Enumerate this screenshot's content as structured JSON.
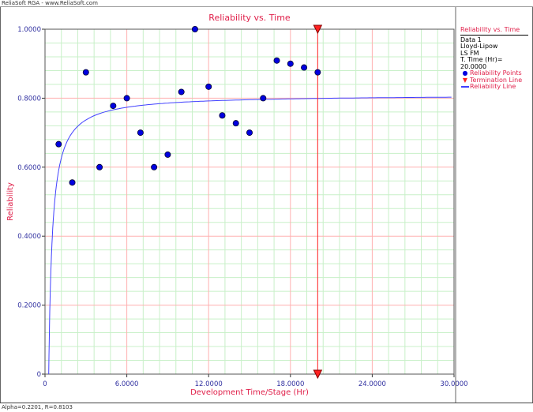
{
  "window": {
    "title": "ReliaSoft RGA - www.ReliaSoft.com"
  },
  "status_bar": {
    "text": "Alpha=0.2201, R=0.8103"
  },
  "legend": {
    "title": "Reliability vs. Time",
    "lines": [
      "Data 1",
      "Lloyd-Lipow",
      "LS FM",
      "T. Time (Hr)= 20.0000"
    ],
    "entries": [
      {
        "label": "Reliability Points",
        "icon": "blue-dot-icon"
      },
      {
        "label": "Termination Line",
        "icon": "red-triangle-line-icon"
      },
      {
        "label": "Reliability Line",
        "icon": "blue-line-icon"
      }
    ]
  },
  "colors": {
    "title": "#e0204a",
    "points": "#0000e0",
    "line": "#4040ff",
    "termination": "#ff2020",
    "major_grid": "#ffb0b0",
    "minor_grid": "#c8f0c8",
    "ticks": "#3030a0"
  },
  "chart_data": {
    "type": "scatter",
    "title": "Reliability vs. Time",
    "xlabel": "Development Time/Stage (Hr)",
    "ylabel": "Reliability",
    "xlim": [
      0,
      30
    ],
    "ylim": [
      0,
      1
    ],
    "grid": true,
    "legend_placement": "right",
    "x_ticks": [
      "0",
      "6.0000",
      "12.0000",
      "18.0000",
      "24.0000",
      "30.0000"
    ],
    "y_ticks": [
      "0",
      "0.2000",
      "0.4000",
      "0.6000",
      "0.8000",
      "1.0000"
    ],
    "x_tick_values": [
      0,
      6,
      12,
      18,
      24,
      30
    ],
    "y_tick_values": [
      0,
      0.2,
      0.4,
      0.6,
      0.8,
      1.0
    ],
    "points": {
      "name": "Reliability Points",
      "x": [
        1,
        2,
        3,
        4,
        5,
        6,
        7,
        8,
        9,
        10,
        11,
        12,
        13,
        14,
        15,
        16,
        17,
        18,
        19,
        20
      ],
      "y": [
        0.6667,
        0.5556,
        0.875,
        0.6,
        0.7778,
        0.8,
        0.7,
        0.6,
        0.6364,
        0.8182,
        1.0,
        0.8333,
        0.75,
        0.7273,
        0.7,
        0.8,
        0.9091,
        0.9,
        0.8889,
        0.875
      ]
    },
    "model": {
      "name": "Reliability Line",
      "type": "Lloyd-Lipow",
      "alpha": 0.2201,
      "R_inf": 0.8103
    },
    "termination_time": 20
  }
}
